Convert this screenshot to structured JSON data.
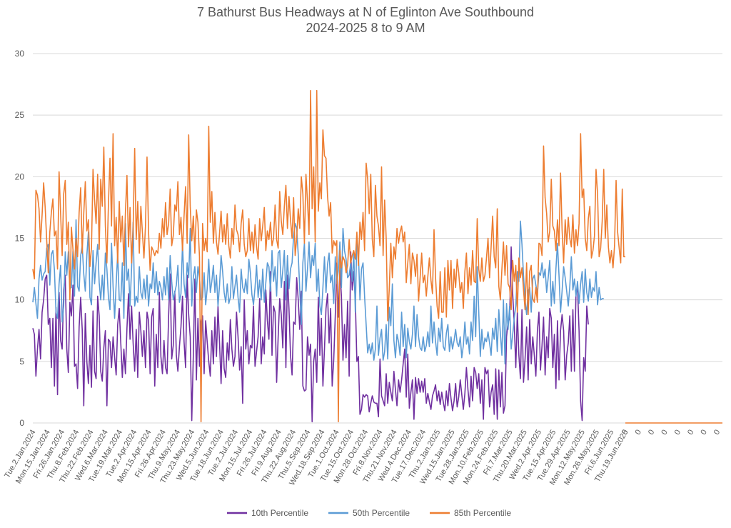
{
  "chart_data": {
    "type": "line",
    "title": "7 Bathurst Bus Headways at N of Eglinton Ave Southbound",
    "subtitle": "2024-2025 8 to 9 AM",
    "ylim": [
      0,
      30
    ],
    "yticks": [
      0,
      5,
      10,
      15,
      20,
      25,
      30
    ],
    "grid": true,
    "legend_position": "bottom",
    "x_tick_labels": [
      "Tue.2.Jan.2024",
      "Mon.15.Jan.2024",
      "Fri.26.Jan.2024",
      "Thu.8.Feb.2024",
      "Thu.22.Feb.2024",
      "Wed.6.Mar.2024",
      "Tue.19.Mar.2024",
      "Tue.2.Apr.2024",
      "Mon.15.Apr.2024",
      "Fri.26.Apr.2024",
      "Thu.9.May.2024",
      "Thu.23.May.2024",
      "Wed.5.Jun.2024",
      "Tue.18.Jun.2024",
      "Tue.2.Jul.2024",
      "Mon.15.Jul.2024",
      "Fri.26.Jul.2024",
      "Fri.9.Aug.2024",
      "Thu.22.Aug.2024",
      "Thu.5.Sep.2024",
      "Wed.18.Sep.2024",
      "Tue.1.Oct.2024",
      "Tue.15.Oct.2024",
      "Mon.28.Oct.2024",
      "Fri.8.Nov.2024",
      "Thu.21.Nov.2024",
      "Wed.4.Dec.2024",
      "Tue.17.Dec.2024",
      "Thu.2.Jan.2025",
      "Wed.15.Jan.2025",
      "Tue.28.Jan.2025",
      "Mon.10.Feb.2025",
      "Mon.24.Feb.2025",
      "Fri.7.Mar.2025",
      "Thu.20.Mar.2025",
      "Wed.2.Apr.2025",
      "Tue.15.Apr.2025",
      "Tue.29.Apr.2025",
      "Mon.12.May.2025",
      "Mon.26.May.2025",
      "Fri.6.Jun.2025",
      "Thu.19.Jun.2025",
      "0",
      "0",
      "0",
      "0",
      "0",
      "0",
      "0",
      "0"
    ],
    "series": [
      {
        "name": "10th Percentile",
        "color": "#7030A0",
        "values": [
          7.7,
          7.2,
          3.8,
          6.0,
          7.6,
          5.2,
          9.0,
          10.0,
          11.7,
          12.0,
          8.0,
          8.5,
          4.5,
          8.5,
          3.0,
          9.4,
          2.3,
          10.6,
          6.7,
          6.0,
          10.8,
          12.0,
          6.0,
          4.1,
          9.8,
          8.7,
          11.2,
          4.6,
          4.8,
          2.8,
          7.8,
          10.2,
          7.6,
          1.4,
          8.9,
          5.0,
          3.2,
          6.3,
          2.9,
          9.1,
          4.2,
          3.6,
          10.3,
          8.7,
          4.2,
          3.4,
          6.1,
          7.5,
          1.4,
          6.8,
          6.6,
          4.5,
          7.0,
          5.3,
          3.9,
          8.0,
          9.3,
          6.5,
          3.7,
          6.0,
          4.0,
          7.7,
          10.5,
          6.8,
          9.5,
          6.5,
          4.2,
          7.6,
          3.7,
          9.0,
          7.5,
          5.4,
          7.5,
          4.5,
          9.0,
          8.3,
          4.0,
          8.6,
          9.3,
          3.0,
          7.2,
          4.5,
          10.6,
          5.4,
          4.0,
          6.7,
          4.5,
          4.0,
          8.7,
          12.1,
          5.2,
          6.3,
          10.7,
          5.5,
          4.2,
          6.2,
          7.8,
          10.3,
          6.6,
          4.5,
          12.0,
          8.8,
          7.0,
          0.2,
          5.4,
          11.7,
          3.5,
          8.5,
          4.6,
          8.2,
          8.7,
          4.0,
          8.3,
          6.6,
          5.0,
          3.8,
          7.5,
          4.8,
          8.6,
          5.4,
          9.5,
          6.5,
          3.2,
          7.5,
          4.4,
          3.7,
          6.5,
          5.1,
          8.4,
          6.0,
          4.6,
          5.4,
          9.0,
          7.0,
          4.3,
          6.2,
          1.6,
          10.0,
          6.0,
          7.5,
          4.8,
          6.3,
          6.1,
          9.5,
          4.6,
          5.8,
          7.0,
          10.1,
          4.8,
          7.0,
          5.6,
          10.8,
          8.3,
          6.8,
          12.3,
          5.5,
          9.5,
          9.0,
          3.3,
          7.0,
          10.1,
          8.8,
          6.1,
          11.5,
          4.5,
          12.0,
          9.3,
          5.5,
          3.9,
          8.2,
          8.0,
          11.8,
          10.0,
          7.6,
          10.7,
          3.0,
          2.6,
          2.7,
          7.0,
          5.5,
          6.4,
          0.1,
          5.0,
          6.0,
          3.3,
          10.2,
          5.5,
          8.5,
          3.0,
          6.0,
          9.3,
          10.5,
          6.5,
          9.3,
          3.0,
          5.1,
          8.7,
          13.0,
          8.6,
          12.4,
          10.3,
          5.1,
          8.0,
          5.3,
          9.9,
          3.8,
          13.9,
          10.8,
          12.3,
          10.0,
          5.0,
          5.4,
          0.7,
          1.1,
          2.3,
          2.1,
          2.3,
          2.2,
          0.9,
          1.6,
          2.2,
          1.7,
          1.6,
          1.6,
          0.5,
          5.2,
          2.2,
          1.8,
          1.4,
          4.0,
          1.6,
          3.3,
          2.5,
          1.8,
          4.2,
          2.7,
          1.4,
          3.5,
          2.5,
          3.5,
          4.8,
          6.0,
          2.1,
          5.6,
          1.2,
          2.5,
          3.5,
          0.3,
          3.7,
          2.4,
          3.6,
          2.5,
          3.4,
          2.5,
          3.6,
          1.6,
          2.4,
          1.7,
          1.1,
          2.2,
          2.6,
          3.1,
          1.8,
          2.6,
          1.5,
          2.5,
          1.7,
          1.0,
          2.6,
          1.4,
          3.2,
          2.0,
          1.0,
          1.8,
          3.2,
          1.3,
          2.1,
          3.5,
          2.3,
          1.1,
          2.4,
          4.5,
          2.7,
          1.3,
          3.8,
          1.8,
          4.5,
          4.1,
          2.8,
          4.0,
          1.6,
          3.5,
          0.3,
          4.5,
          4.0,
          4.3,
          1.3,
          2.5,
          3.1,
          0.7,
          4.4,
          0.3,
          4.3,
          1.3,
          4.1,
          0.8,
          1.4,
          7.0,
          8.2,
          8.5,
          14.3,
          10.5,
          8.0,
          4.5,
          9.0,
          5.5,
          3.6,
          9.2,
          3.3,
          5.2,
          7.8,
          3.5,
          8.4,
          4.8,
          7.0,
          5.5,
          3.8,
          7.5,
          9.0,
          4.3,
          6.3,
          8.6,
          3.9,
          7.0,
          5.3,
          9.3,
          8.5,
          4.5,
          7.2,
          2.8,
          8.3,
          3.5,
          7.5,
          8.8,
          7.5,
          3.5,
          5.5,
          6.5,
          8.7,
          4.2,
          9.2,
          4.2,
          10.5,
          11.0,
          7.5,
          1.8,
          0.2,
          5.3,
          4.2,
          9.5,
          8.0
        ],
        "x_start_index": 0
      },
      {
        "name": "50th Percentile",
        "color": "#5B9BD5",
        "values": [
          9.8,
          11.0,
          9.7,
          8.5,
          11.7,
          12.8,
          11.6,
          12.1,
          12.3,
          14.2,
          14.5,
          11.2,
          13.7,
          14.0,
          12.4,
          9.0,
          8.5,
          11.3,
          12.8,
          8.2,
          9.5,
          13.9,
          12.0,
          13.9,
          10.9,
          11.0,
          14.0,
          10.3,
          16.5,
          11.1,
          10.7,
          13.6,
          14.4,
          12.1,
          10.7,
          13.6,
          15.5,
          10.2,
          9.6,
          14.0,
          11.3,
          13.0,
          14.5,
          11.4,
          10.0,
          12.0,
          10.0,
          13.8,
          12.5,
          10.2,
          9.2,
          14.6,
          11.1,
          8.5,
          11.3,
          13.8,
          10.0,
          9.9,
          13.0,
          8.5,
          16.2,
          11.6,
          12.5,
          9.5,
          12.6,
          16.3,
          9.5,
          10.3,
          9.8,
          12.7,
          10.6,
          10.1,
          11.7,
          10.1,
          12.0,
          9.5,
          11.3,
          10.9,
          13.0,
          10.6,
          12.3,
          10.4,
          11.5,
          11.0,
          10.0,
          11.9,
          10.4,
          12.6,
          10.0,
          13.6,
          11.5,
          10.0,
          10.6,
          11.2,
          12.8,
          9.8,
          10.5,
          14.6,
          11.3,
          10.2,
          13.0,
          11.8,
          15.8,
          9.5,
          11.8,
          12.7,
          10.6,
          12.7,
          11.8,
          10.0,
          10.2,
          12.2,
          9.6,
          10.9,
          13.3,
          10.6,
          11.5,
          12.8,
          10.6,
          12.0,
          9.5,
          11.2,
          13.6,
          12.3,
          10.6,
          9.8,
          11.3,
          9.7,
          10.2,
          12.7,
          10.1,
          11.1,
          12.0,
          10.2,
          9.0,
          12.5,
          11.0,
          10.6,
          11.7,
          10.5,
          13.3,
          12.2,
          10.4,
          9.6,
          11.0,
          12.8,
          10.2,
          11.6,
          10.0,
          12.5,
          9.8,
          11.4,
          13.0,
          12.7,
          10.7,
          14.0,
          11.5,
          12.7,
          10.3,
          13.8,
          14.0,
          11.0,
          12.4,
          14.0,
          10.0,
          13.6,
          10.9,
          12.5,
          13.0,
          15.2,
          16.2,
          15.8,
          13.7,
          10.8,
          8.0,
          13.0,
          14.6,
          10.7,
          12.5,
          14.7,
          11.8,
          13.6,
          12.8,
          14.6,
          10.7,
          12.5,
          9.5,
          8.8,
          11.0,
          13.5,
          10.6,
          12.9,
          13.8,
          11.4,
          12.0,
          9.7,
          13.5,
          11.3,
          12.4,
          14.7,
          11.0,
          15.8,
          14.0,
          13.3,
          11.8,
          12.0,
          13.0,
          11.5,
          13.8,
          9.0,
          15.2,
          13.8,
          10.0,
          12.5,
          13.0,
          10.3,
          8.0,
          5.7,
          6.4,
          5.6,
          6.5,
          5.1,
          6.0,
          9.5,
          5.5,
          6.9,
          7.6,
          5.1,
          5.8,
          8.0,
          5.2,
          9.4,
          7.9,
          11.3,
          6.7,
          5.3,
          7.2,
          6.6,
          5.5,
          9.0,
          6.2,
          8.0,
          5.3,
          7.7,
          6.6,
          6.0,
          7.2,
          9.5,
          6.2,
          8.8,
          7.0,
          6.1,
          5.9,
          7.0,
          5.8,
          6.3,
          7.4,
          6.2,
          9.5,
          6.5,
          8.2,
          6.6,
          5.5,
          7.7,
          6.6,
          8.5,
          6.2,
          5.9,
          7.3,
          8.0,
          5.8,
          7.0,
          6.0,
          6.7,
          7.6,
          6.5,
          6.2,
          7.0,
          5.3,
          6.3,
          8.2,
          6.4,
          7.0,
          5.6,
          8.2,
          6.7,
          10.3,
          7.0,
          12.7,
          9.0,
          5.4,
          7.6,
          6.0,
          6.9,
          6.6,
          7.4,
          6.5,
          5.5,
          7.7,
          6.8,
          8.5,
          5.8,
          9.2,
          7.3,
          5.5,
          10.0,
          4.8,
          9.7,
          7.6,
          9.5,
          6.0,
          7.2,
          8.5,
          9.5,
          12.3,
          11.5,
          16.4,
          14.5,
          12.0,
          10.0,
          8.8,
          10.7,
          11.0,
          9.0,
          11.7,
          12.0,
          11.2,
          10.5,
          12.2,
          12.0,
          13.0,
          11.8,
          12.5,
          10.6,
          11.8,
          13.2,
          9.5,
          11.5,
          9.7,
          12.5,
          14.6,
          12.0,
          9.0,
          10.7,
          12.7,
          11.8,
          10.7,
          9.5,
          11.1,
          13.5,
          10.8,
          11.7,
          10.3,
          11.5,
          9.7,
          11.3,
          12.3,
          9.8,
          12.5,
          10.6,
          9.9,
          11.7,
          10.2,
          11.0,
          10.7,
          12.3,
          9.6,
          11.0,
          10.0,
          10.1,
          10.1
        ],
        "x_start_index": 0
      },
      {
        "name": "85th Percentile",
        "color": "#ED7D31",
        "values": [
          12.5,
          11.7,
          18.9,
          18.5,
          17.4,
          14.7,
          16.9,
          19.5,
          17.5,
          14.8,
          12.2,
          15.5,
          17.1,
          18.2,
          15.2,
          15.6,
          12.5,
          20.4,
          17.0,
          13.6,
          18.6,
          19.7,
          14.5,
          16.3,
          10.0,
          15.9,
          14.1,
          12.5,
          15.0,
          13.5,
          17.1,
          19.1,
          13.8,
          17.0,
          19.6,
          15.6,
          16.5,
          12.7,
          14.2,
          20.6,
          18.1,
          16.2,
          20.2,
          14.1,
          19.8,
          17.6,
          22.4,
          16.0,
          13.0,
          17.8,
          21.5,
          16.0,
          23.5,
          14.4,
          16.7,
          13.0,
          18.0,
          14.7,
          16.8,
          12.8,
          17.1,
          20.1,
          14.3,
          17.5,
          13.0,
          15.8,
          22.3,
          14.9,
          18.0,
          13.8,
          17.6,
          15.5,
          13.4,
          16.0,
          21.6,
          15.5,
          12.4,
          14.3,
          14.0,
          13.6,
          14.0,
          13.8,
          15.4,
          14.2,
          16.6,
          15.1,
          17.9,
          15.3,
          16.2,
          19.0,
          14.4,
          15.2,
          17.7,
          17.2,
          19.6,
          15.3,
          16.7,
          14.0,
          16.8,
          19.2,
          14.6,
          23.4,
          17.6,
          14.8,
          16.8,
          13.8,
          17.3,
          16.3,
          13.5,
          0.1,
          16.2,
          14.0,
          15.0,
          13.9,
          24.1,
          16.3,
          18.8,
          14.6,
          17.1,
          14.7,
          13.7,
          15.4,
          17.2,
          14.7,
          16.1,
          14.5,
          17.0,
          14.4,
          13.4,
          15.8,
          14.5,
          17.7,
          15.7,
          15.3,
          13.9,
          16.2,
          17.3,
          14.5,
          13.5,
          14.0,
          16.6,
          14.0,
          15.5,
          13.8,
          16.1,
          14.3,
          13.3,
          16.6,
          14.8,
          16.0,
          17.5,
          14.0,
          15.6,
          14.9,
          16.3,
          14.4,
          15.0,
          17.7,
          14.9,
          14.2,
          18.8,
          16.4,
          15.3,
          17.6,
          19.3,
          15.8,
          18.4,
          16.5,
          15.0,
          18.3,
          13.6,
          15.0,
          17.4,
          15.8,
          20.0,
          18.6,
          14.6,
          20.2,
          18.0,
          15.3,
          27.0,
          17.4,
          20.8,
          14.7,
          27.0,
          17.2,
          19.5,
          18.2,
          23.8,
          21.7,
          21.5,
          18.4,
          16.8,
          17.9,
          13.8,
          14.8,
          14.4,
          14.8,
          0.1,
          14.0,
          12.6,
          13.5,
          13.2,
          12.2,
          12.8,
          14.9,
          13.0,
          13.6,
          14.0,
          13.3,
          15.5,
          12.8,
          16.3,
          14.9,
          17.1,
          14.0,
          21.1,
          19.8,
          17.0,
          20.2,
          14.9,
          13.5,
          19.3,
          16.8,
          16.0,
          14.4,
          20.8,
          13.6,
          18.1,
          15.0,
          8.3,
          10.9,
          14.6,
          11.8,
          14.3,
          13.3,
          15.8,
          14.6,
          15.5,
          16.0,
          14.7,
          15.5,
          11.4,
          13.0,
          14.5,
          11.3,
          13.8,
          13.2,
          11.9,
          13.7,
          9.9,
          11.8,
          13.8,
          11.4,
          12.0,
          10.3,
          11.9,
          13.4,
          11.6,
          10.5,
          15.7,
          11.8,
          9.5,
          8.5,
          12.3,
          9.0,
          9.0,
          12.6,
          8.6,
          13.2,
          10.8,
          13.2,
          9.3,
          12.5,
          11.0,
          13.3,
          12.2,
          10.6,
          11.4,
          9.3,
          12.3,
          13.8,
          10.5,
          12.6,
          11.2,
          14.0,
          11.5,
          11.4,
          16.6,
          12.5,
          11.5,
          13.4,
          11.5,
          12.0,
          13.4,
          15.0,
          11.8,
          14.3,
          16.8,
          13.5,
          12.6,
          17.4,
          11.1,
          10.0,
          12.5,
          14.7,
          12.0,
          14.4,
          11.3,
          11.0,
          9.2,
          13.2,
          11.5,
          12.8,
          9.0,
          13.4,
          11.8,
          12.6,
          10.8,
          9.2,
          13.0,
          8.8,
          12.3,
          12.8,
          10.1,
          9.8,
          11.0,
          9.8,
          14.6,
          14.5,
          13.6,
          22.5,
          18.3,
          17.0,
          14.7,
          15.6,
          19.8,
          16.0,
          15.6,
          14.0,
          16.5,
          14.4,
          20.3,
          15.7,
          13.0,
          16.5,
          14.5,
          16.7,
          15.0,
          14.3,
          16.9,
          13.8,
          15.7,
          14.4,
          16.2,
          23.5,
          18.3,
          19.0,
          15.0,
          14.0,
          16.6,
          17.6,
          13.4,
          14.0,
          15.2,
          20.6,
          18.6,
          13.5,
          14.2,
          16.4,
          20.6,
          15.0,
          17.7,
          14.3,
          13.0,
          14.0,
          12.6,
          14.4,
          19.7,
          15.5,
          14.2,
          13.0,
          19.0,
          13.5,
          13.5
        ],
        "x_start_index": 0
      }
    ],
    "trailing_zeros_count": 8
  },
  "legend": {
    "items": [
      {
        "label": "10th Percentile",
        "color": "#7030A0"
      },
      {
        "label": "50th Percentile",
        "color": "#5B9BD5"
      },
      {
        "label": "85th Percentile",
        "color": "#ED7D31"
      }
    ]
  }
}
